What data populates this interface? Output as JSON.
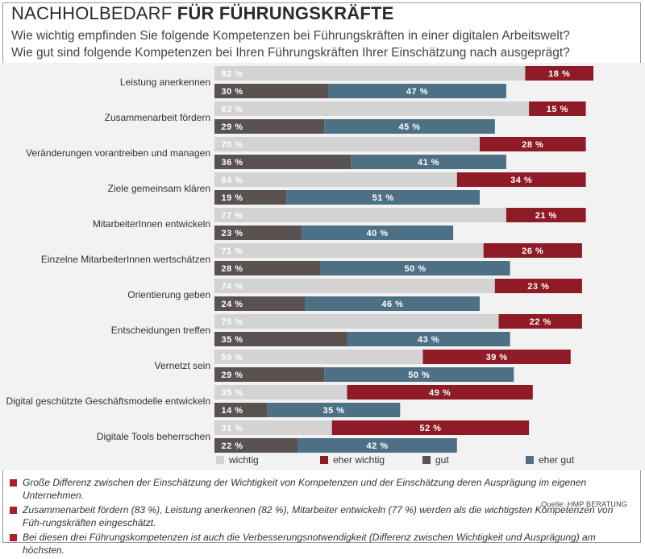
{
  "title_light": "NACHHOLBEDARF ",
  "title_bold": "FÜR FÜHRUNGSKRÄFTE",
  "subtitle_1": "Wie wichtig empfinden Sie folgende Kompetenzen bei Führungskräften in einer digitalen Arbeitswelt?",
  "subtitle_2": "Wie gut sind folgende Kompetenzen bei Ihren Führungskräften Ihrer Einschätzung nach ausgeprägt?",
  "source": "Quelle: HMP BERATUNG",
  "colors": {
    "wichtig": "#d3d3d3",
    "eher_wichtig": "#8e1b25",
    "gut": "#5a5151",
    "eher_gut": "#4d7085",
    "bullet": "#b01f24"
  },
  "notes": [
    "Große Differenz zwischen der Einschätzung der Wichtigkeit von Kompetenzen und der Einschätzung deren Ausprägung im eigenen Unternehmen.",
    "Zusammenarbeit fördern (83 %), Leistung anerkennen (82 %), Mitarbeiter entwickeln (77 %) werden als die wichtigsten Kompetenzen von Füh-rungskräften eingeschätzt.",
    "Bei diesen drei Führungskompetenzen ist auch die Verbesserungsnotwendigkeit (Differenz zwischen Wichtigkeit und Ausprägung) am höchsten."
  ],
  "chart_data": {
    "type": "bar",
    "orientation": "horizontal",
    "stacked": true,
    "unit": "%",
    "legend_position": "bottom",
    "categories": [
      "Leistung anerkennen",
      "Zusammenarbeit fördern",
      "Veränderungen vorantreiben und managen",
      "Ziele gemeinsam klären",
      "MitarbeiterInnen entwickeln",
      "Einzelne MitarbeiterInnen wertschätzen",
      "Orientierung geben",
      "Entscheidungen treffen",
      "Vernetzt sein",
      "Digital geschützte Geschäftsmodelle entwickeln",
      "Digitale Tools beherrschen"
    ],
    "series": [
      {
        "name": "wichtig",
        "group": "wichtigkeit",
        "color_key": "wichtig",
        "values": [
          82,
          83,
          70,
          64,
          77,
          71,
          74,
          75,
          55,
          35,
          31
        ]
      },
      {
        "name": "eher wichtig",
        "group": "wichtigkeit",
        "color_key": "eher_wichtig",
        "values": [
          18,
          15,
          28,
          34,
          21,
          26,
          23,
          22,
          39,
          49,
          52
        ]
      },
      {
        "name": "gut",
        "group": "auspraegung",
        "color_key": "gut",
        "values": [
          30,
          29,
          36,
          19,
          23,
          28,
          24,
          35,
          29,
          14,
          22
        ]
      },
      {
        "name": "eher gut",
        "group": "auspraegung",
        "color_key": "eher_gut",
        "values": [
          47,
          45,
          41,
          51,
          40,
          50,
          46,
          43,
          50,
          35,
          42
        ]
      }
    ],
    "xlim": [
      0,
      100
    ],
    "grid": false
  }
}
